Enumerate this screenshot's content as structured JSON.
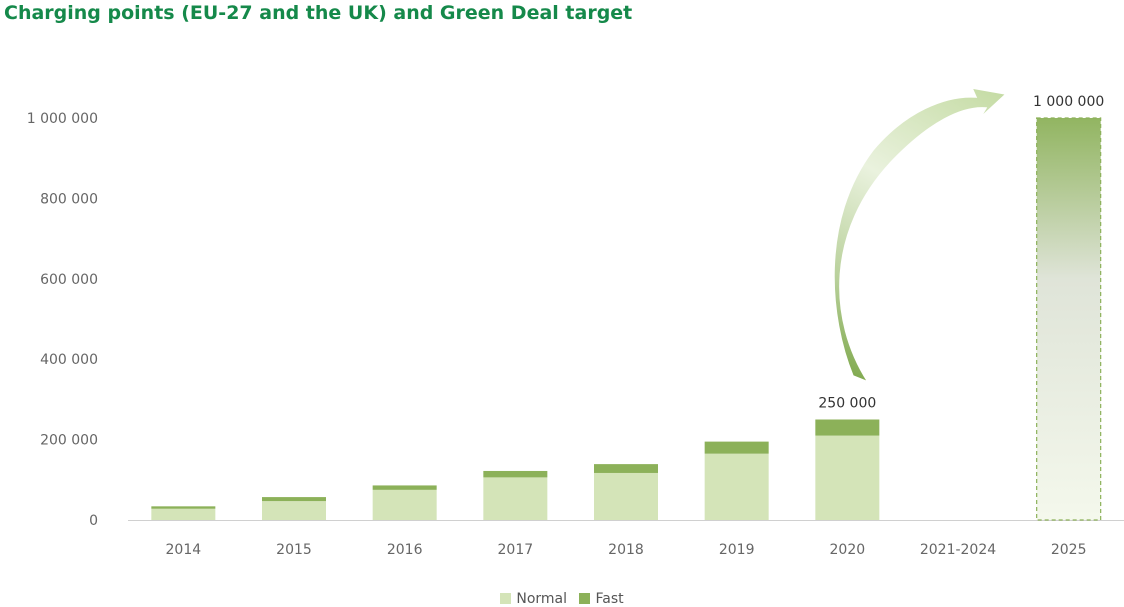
{
  "chart_data": {
    "type": "bar",
    "stacked": true,
    "title": "Charging points (EU-27 and the UK) and Green Deal target",
    "categories": [
      "2014",
      "2015",
      "2016",
      "2017",
      "2018",
      "2019",
      "2020",
      "2021-2024",
      "2025"
    ],
    "series": [
      {
        "name": "Normal",
        "color": "#d4e4b8",
        "values": [
          28000,
          47000,
          75000,
          106000,
          117000,
          165000,
          210000,
          null,
          null
        ]
      },
      {
        "name": "Fast",
        "color": "#8cb159",
        "values": [
          6000,
          10000,
          11000,
          16000,
          22000,
          30000,
          40000,
          null,
          null
        ]
      },
      {
        "name": "Target",
        "color": "#8cb159",
        "values": [
          null,
          null,
          null,
          null,
          null,
          null,
          null,
          null,
          1000000
        ]
      }
    ],
    "yticks": [
      0,
      200000,
      400000,
      600000,
      800000,
      1000000
    ],
    "yticklabels": [
      "0",
      "200 000",
      "400 000",
      "600 000",
      "800 000",
      "1 000 000"
    ],
    "ylim": [
      0,
      1000000
    ],
    "data_labels": [
      {
        "category": "2020",
        "value": 250000,
        "text": "250 000"
      },
      {
        "category": "2025",
        "value": 1000000,
        "text": "1 000 000"
      }
    ],
    "annotation": "arrow from 2020 bar to 2025 target",
    "legend": [
      "Normal",
      "Fast"
    ],
    "legend_position": "bottom",
    "xlabel": "",
    "ylabel": ""
  }
}
